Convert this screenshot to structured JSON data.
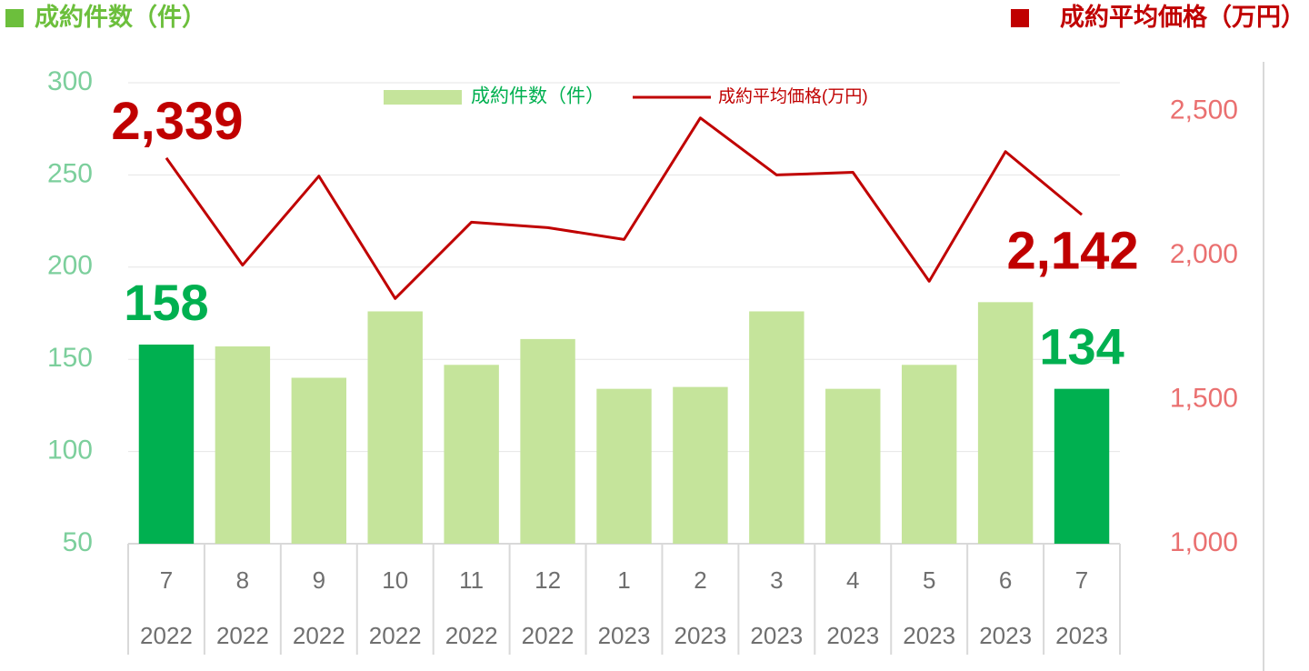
{
  "chart_data": {
    "type": "bar-line",
    "ylabel": "成約件数（件）",
    "y2label": "成約平均価格（万円）",
    "categories": [
      "7",
      "8",
      "9",
      "10",
      "11",
      "12",
      "1",
      "2",
      "3",
      "4",
      "5",
      "6",
      "7"
    ],
    "category_years": [
      "2022",
      "2022",
      "2022",
      "2022",
      "2022",
      "2022",
      "2023",
      "2023",
      "2023",
      "2023",
      "2023",
      "2023",
      "2023"
    ],
    "ylim": [
      50,
      300
    ],
    "yticks": [
      50,
      100,
      150,
      200,
      250,
      300
    ],
    "y2lim": [
      1000,
      2600
    ],
    "y2ticks": [
      {
        "value": 1000,
        "label": "1,000"
      },
      {
        "value": 1500,
        "label": "1,500"
      },
      {
        "value": 2000,
        "label": "2,000"
      },
      {
        "value": 2500,
        "label": "2,500"
      }
    ],
    "grid": true,
    "series": [
      {
        "name": "成約件数（件）",
        "type": "bar",
        "color": "#c5e49b",
        "colors": [
          "#00b050",
          "#c5e49b",
          "#c5e49b",
          "#c5e49b",
          "#c5e49b",
          "#c5e49b",
          "#c5e49b",
          "#c5e49b",
          "#c5e49b",
          "#c5e49b",
          "#c5e49b",
          "#c5e49b",
          "#00b050"
        ],
        "values": [
          158,
          157,
          140,
          176,
          147,
          161,
          134,
          135,
          176,
          134,
          147,
          181,
          134
        ],
        "show_labels": [
          true,
          false,
          false,
          false,
          false,
          false,
          false,
          false,
          false,
          false,
          false,
          false,
          true
        ]
      },
      {
        "name": "成約平均価格(万円)",
        "type": "line",
        "axis": "y2",
        "color": "#c00000",
        "values": [
          2339,
          1967,
          2276,
          1851,
          2116,
          2097,
          2056,
          2478,
          2280,
          2289,
          1911,
          2361,
          2142
        ],
        "value_labels": [
          "2,339",
          null,
          null,
          null,
          null,
          null,
          null,
          null,
          null,
          null,
          null,
          null,
          "2,142"
        ]
      }
    ]
  }
}
